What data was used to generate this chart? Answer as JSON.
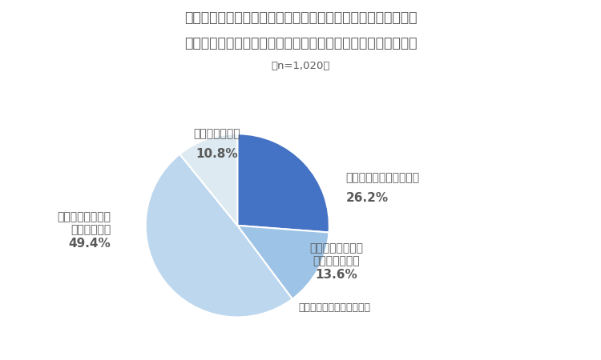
{
  "title_line1": "取引先から飲み会に誘われて「行きたくない」と思ったとき、",
  "title_line2": "あなたの行動パターンとして最も多いものを選んでください。",
  "subtitle": "（n=1,020）",
  "values": [
    26.2,
    13.6,
    49.4,
    10.8
  ],
  "colors": [
    "#4472C4",
    "#9DC3E6",
    "#BDD7EE",
    "#DEEAF1"
  ],
  "source_text": "日本トレンドリサーチ調べ",
  "background_color": "#FFFFFF",
  "text_color": "#595959",
  "title_fontsize": 12.5,
  "subtitle_fontsize": 9.5,
  "label_fontsize": 10,
  "pct_fontsize": 11
}
